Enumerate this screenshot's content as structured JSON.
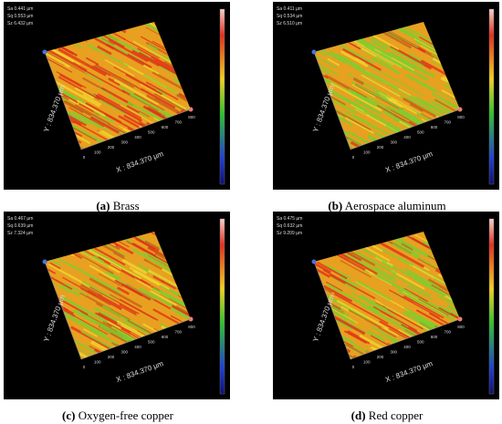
{
  "panels": [
    {
      "label": "(a)",
      "caption": "Brass",
      "stats": [
        "Sa 0.441 µm",
        "Sq 0.553 µm",
        "Sz 6.432 µm"
      ],
      "x_axis": "X : 834.370 µm",
      "y_axis": "Y : 834.370 µm"
    },
    {
      "label": "(b)",
      "caption": "Aerospace aluminum",
      "stats": [
        "Sa 0.411 µm",
        "Sq 0.534 µm",
        "Sz 6.510 µm"
      ],
      "x_axis": "X : 834.370 µm",
      "y_axis": "Y : 834.370 µm"
    },
    {
      "label": "(c)",
      "caption": "Oxygen-free copper",
      "stats": [
        "Sa 0.467 µm",
        "Sq 0.639 µm",
        "Sz 7.324 µm"
      ],
      "x_axis": "X : 834.370 µm",
      "y_axis": "Y : 834.370 µm"
    },
    {
      "label": "(d)",
      "caption": "Red copper",
      "stats": [
        "Sa 0.475 µm",
        "Sq 0.632 µm",
        "Sz 9.209 µm"
      ],
      "x_axis": "X : 834.370 µm",
      "y_axis": "Y : 834.370 µm"
    }
  ],
  "x_ticks": [
    "0",
    "100",
    "200",
    "300",
    "400",
    "500",
    "600",
    "700",
    "800"
  ]
}
